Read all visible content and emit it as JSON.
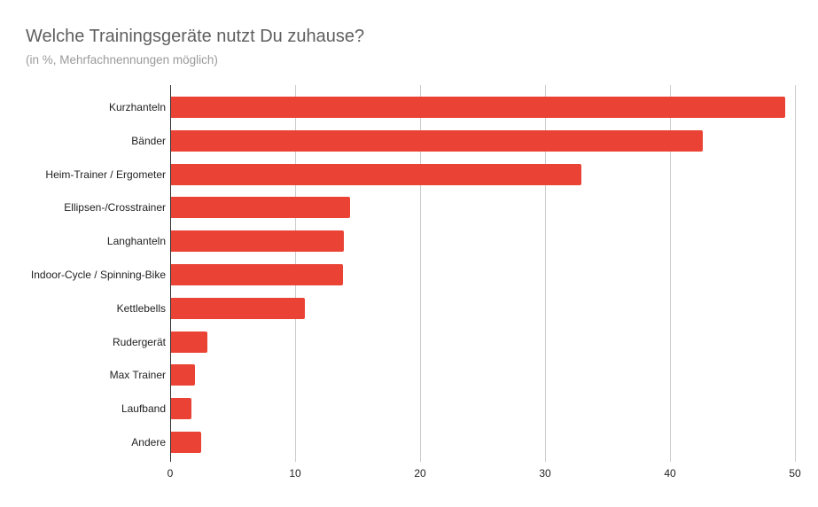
{
  "chart_data": {
    "type": "bar",
    "orientation": "horizontal",
    "title": "Welche Trainingsgeräte nutzt Du zuhause?",
    "subtitle": "(in %, Mehrfachnennungen möglich)",
    "xlabel": "",
    "ylabel": "",
    "categories": [
      "Kurzhanteln",
      "Bänder",
      "Heim-Trainer / Ergometer",
      "Ellipsen-/Crosstrainer",
      "Langhanteln",
      "Indoor-Cycle / Spinning-Bike",
      "Kettlebells",
      "Rudergerät",
      "Max Trainer",
      "Laufband",
      "Andere"
    ],
    "values": [
      49.2,
      42.6,
      32.9,
      14.4,
      13.9,
      13.8,
      10.8,
      3.0,
      2.0,
      1.7,
      2.5
    ],
    "xlim": [
      0,
      50
    ],
    "x_ticks": [
      "0",
      "10",
      "20",
      "30",
      "40",
      "50"
    ],
    "grid": "vertical",
    "legend": "none",
    "bar_color": "#ea4335"
  }
}
